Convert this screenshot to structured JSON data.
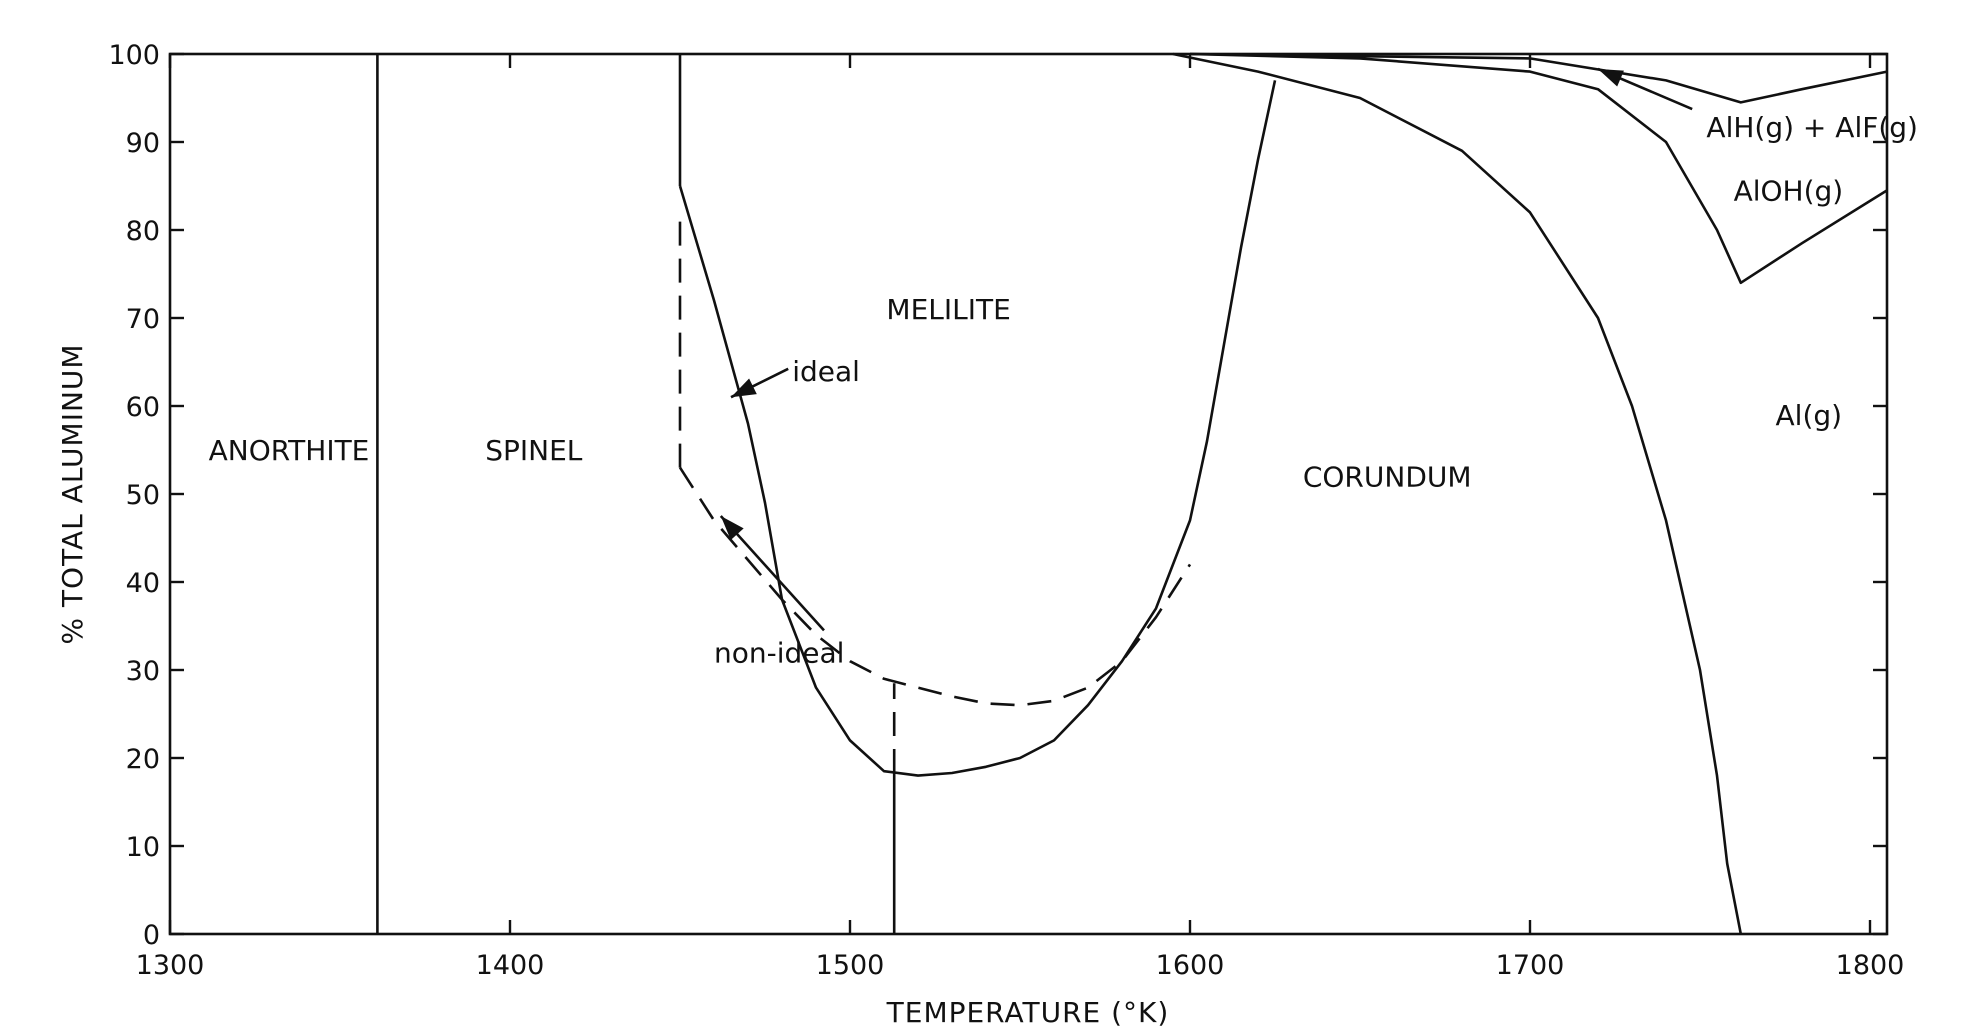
{
  "chart_data": {
    "type": "area",
    "title": "",
    "xlabel": "TEMPERATURE (°K)",
    "ylabel": "% TOTAL ALUMINUM",
    "xlim": [
      1300,
      1805
    ],
    "ylim": [
      0,
      100
    ],
    "xticks": [
      1300,
      1400,
      1500,
      1600,
      1700,
      1800
    ],
    "yticks": [
      0,
      10,
      20,
      30,
      40,
      50,
      60,
      70,
      80,
      90,
      100
    ],
    "grid": false,
    "legend": "none",
    "regions": [
      {
        "label": "ANORTHITE",
        "x": 1335,
        "y": 55
      },
      {
        "label": "SPINEL",
        "x": 1407,
        "y": 55
      },
      {
        "label": "MELILITE",
        "x": 1529,
        "y": 71
      },
      {
        "label": "CORUNDUM",
        "x": 1658,
        "y": 52
      },
      {
        "label": "Al(g)",
        "x": 1782,
        "y": 59
      },
      {
        "label": "AlOH(g)",
        "x": 1776,
        "y": 84.5
      },
      {
        "label": "AlH(g) + AlF(g)",
        "x": 1783,
        "y": 91.7
      }
    ],
    "annotations": [
      {
        "label": "ideal",
        "x": 1483,
        "y": 64,
        "arrow_to": [
          1465,
          61
        ]
      },
      {
        "label": "non-ideal",
        "x": 1460,
        "y": 32,
        "arrow_to": [
          1462,
          47.5
        ]
      }
    ],
    "series": [
      {
        "style": "solid",
        "x": [
          1361,
          1361
        ],
        "y": [
          0,
          100
        ]
      },
      {
        "style": "solid",
        "x": [
          1450,
          1450
        ],
        "y": [
          85,
          100
        ]
      },
      {
        "style": "solid",
        "x": [
          1450,
          1460,
          1470,
          1475,
          1480,
          1490,
          1500,
          1510,
          1520,
          1530,
          1540,
          1550,
          1560,
          1570,
          1580,
          1590,
          1600,
          1605,
          1610,
          1615,
          1620,
          1625
        ],
        "y": [
          85,
          72,
          58,
          49,
          38,
          28,
          22,
          18.5,
          18,
          18.3,
          19,
          20,
          22,
          26,
          31,
          37,
          47,
          56,
          67,
          78,
          88,
          97
        ]
      },
      {
        "style": "solid",
        "x": [
          1513,
          1513
        ],
        "y": [
          0,
          18.3
        ]
      },
      {
        "style": "dashed",
        "x": [
          1450,
          1450
        ],
        "y": [
          53,
          82
        ]
      },
      {
        "style": "dashed",
        "x": [
          1450,
          1460,
          1470,
          1480,
          1490,
          1500,
          1510,
          1520,
          1530,
          1540,
          1550,
          1560,
          1570,
          1580,
          1590,
          1600
        ],
        "y": [
          53,
          47,
          42.5,
          38,
          34,
          31,
          29,
          28,
          27,
          26.2,
          26,
          26.5,
          28,
          31,
          36,
          42
        ]
      },
      {
        "style": "dashed",
        "x": [
          1513,
          1513
        ],
        "y": [
          18.3,
          28.5
        ]
      },
      {
        "style": "solid",
        "x": [
          1595,
          1620,
          1650,
          1680,
          1700,
          1720,
          1730,
          1740,
          1750,
          1755,
          1758,
          1761,
          1762
        ],
        "y": [
          100,
          98,
          95,
          89,
          82,
          70,
          60,
          47,
          30,
          18,
          8,
          2,
          0
        ]
      },
      {
        "style": "solid",
        "x": [
          1600,
          1650,
          1700,
          1720,
          1740,
          1755,
          1762,
          1780,
          1805
        ],
        "y": [
          100,
          99.5,
          98,
          96,
          90,
          80,
          74,
          78.5,
          84.5
        ]
      },
      {
        "style": "solid",
        "x": [
          1600,
          1700,
          1740,
          1762,
          1780,
          1805
        ],
        "y": [
          100,
          99.5,
          97,
          94.5,
          96,
          98
        ]
      }
    ]
  }
}
